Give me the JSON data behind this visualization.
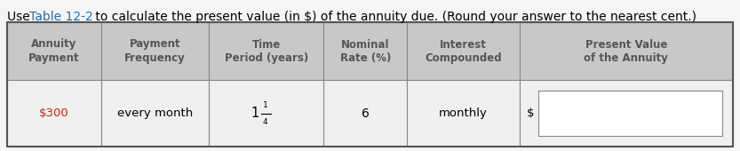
{
  "title_link": "Table 12-2",
  "title_link_color": "#1a6faf",
  "title_color": "#000000",
  "title_fontsize": 10,
  "header_bg": "#c8c8c8",
  "header_text_color": "#555555",
  "data_bg": "#f0f0f0",
  "border_color": "#888888",
  "col_headers": [
    "Annuity\nPayment",
    "Payment\nFrequency",
    "Time\nPeriod (years)",
    "Nominal\nRate (%)",
    "Interest\nCompounded",
    "Present Value\nof the Annuity"
  ],
  "annuity_color": "#cc2200",
  "bg_color": "#f5f5f5",
  "table_border_color": "#555555",
  "input_box_color": "#888888",
  "header_fontsize": 8.5,
  "data_fontsize": 9.5
}
